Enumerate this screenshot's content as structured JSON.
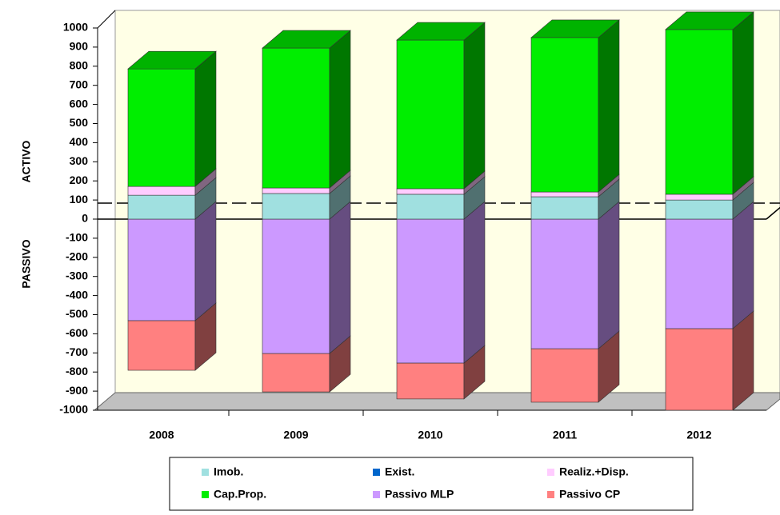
{
  "chart_data": {
    "type": "bar3d_stacked",
    "categories": [
      "2008",
      "2009",
      "2010",
      "2011",
      "2012"
    ],
    "ylabel_positive": "ACTIVO",
    "ylabel_negative": "PASSIVO",
    "series": [
      {
        "name": "Imob.",
        "color": "#a0e0e0",
        "values": [
          125,
          134,
          130,
          117,
          100
        ]
      },
      {
        "name": "Exist.",
        "color": "#0066cc",
        "values": [
          0,
          0,
          0,
          0,
          0
        ]
      },
      {
        "name": "Realiz.+Disp.",
        "color": "#ffccff",
        "values": [
          46,
          29,
          29,
          25,
          30
        ]
      },
      {
        "name": "Cap.Prop.",
        "color": "#00ee00",
        "values": [
          615,
          732,
          778,
          808,
          862
        ]
      },
      {
        "name": "Passivo MLP",
        "color": "#cc99ff",
        "values": [
          -531,
          -703,
          -753,
          -678,
          -573
        ]
      },
      {
        "name": "Passivo CP",
        "color": "#ff8080",
        "values": [
          -260,
          -201,
          -188,
          -280,
          -427
        ]
      }
    ],
    "ylim": [
      -1000,
      1000
    ],
    "yticks": [
      1000,
      900,
      800,
      700,
      600,
      500,
      400,
      300,
      200,
      100,
      0,
      -100,
      -200,
      -300,
      -400,
      -500,
      -600,
      -700,
      -800,
      -900,
      -1000
    ]
  }
}
